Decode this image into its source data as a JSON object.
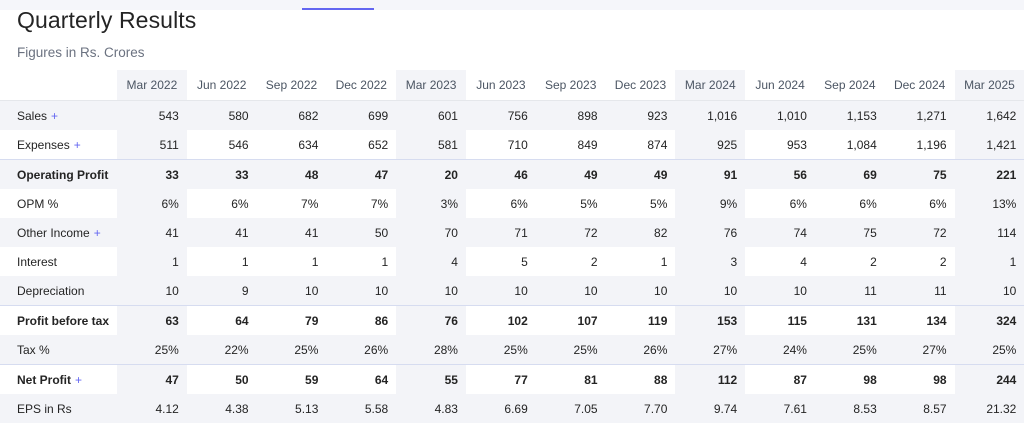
{
  "header": {
    "title": "Quarterly Results",
    "subtitle": "Figures in Rs. Crores"
  },
  "table": {
    "columns": [
      "Mar 2022",
      "Jun 2022",
      "Sep 2022",
      "Dec 2022",
      "Mar 2023",
      "Jun 2023",
      "Sep 2023",
      "Dec 2023",
      "Mar 2024",
      "Jun 2024",
      "Sep 2024",
      "Dec 2024",
      "Mar 2025"
    ],
    "expand_symbol": "+",
    "rows": [
      {
        "label": "Sales",
        "expandable": true,
        "bold": false,
        "sep": false,
        "values": [
          "543",
          "580",
          "682",
          "699",
          "601",
          "756",
          "898",
          "923",
          "1,016",
          "1,010",
          "1,153",
          "1,271",
          "1,642"
        ]
      },
      {
        "label": "Expenses",
        "expandable": true,
        "bold": false,
        "sep": false,
        "values": [
          "511",
          "546",
          "634",
          "652",
          "581",
          "710",
          "849",
          "874",
          "925",
          "953",
          "1,084",
          "1,196",
          "1,421"
        ]
      },
      {
        "label": "Operating Profit",
        "expandable": false,
        "bold": true,
        "sep": true,
        "values": [
          "33",
          "33",
          "48",
          "47",
          "20",
          "46",
          "49",
          "49",
          "91",
          "56",
          "69",
          "75",
          "221"
        ]
      },
      {
        "label": "OPM %",
        "expandable": false,
        "bold": false,
        "sep": false,
        "values": [
          "6%",
          "6%",
          "7%",
          "7%",
          "3%",
          "6%",
          "5%",
          "5%",
          "9%",
          "6%",
          "6%",
          "6%",
          "13%"
        ]
      },
      {
        "label": "Other Income",
        "expandable": true,
        "bold": false,
        "sep": false,
        "values": [
          "41",
          "41",
          "41",
          "50",
          "70",
          "71",
          "72",
          "82",
          "76",
          "74",
          "75",
          "72",
          "114"
        ]
      },
      {
        "label": "Interest",
        "expandable": false,
        "bold": false,
        "sep": false,
        "values": [
          "1",
          "1",
          "1",
          "1",
          "4",
          "5",
          "2",
          "1",
          "3",
          "4",
          "2",
          "2",
          "1"
        ]
      },
      {
        "label": "Depreciation",
        "expandable": false,
        "bold": false,
        "sep": false,
        "values": [
          "10",
          "9",
          "10",
          "10",
          "10",
          "10",
          "10",
          "10",
          "10",
          "10",
          "11",
          "11",
          "10"
        ]
      },
      {
        "label": "Profit before tax",
        "expandable": false,
        "bold": true,
        "sep": true,
        "values": [
          "63",
          "64",
          "79",
          "86",
          "76",
          "102",
          "107",
          "119",
          "153",
          "115",
          "131",
          "134",
          "324"
        ]
      },
      {
        "label": "Tax %",
        "expandable": false,
        "bold": false,
        "sep": false,
        "values": [
          "25%",
          "22%",
          "25%",
          "26%",
          "28%",
          "25%",
          "25%",
          "26%",
          "27%",
          "24%",
          "25%",
          "27%",
          "25%"
        ]
      },
      {
        "label": "Net Profit",
        "expandable": true,
        "bold": true,
        "sep": true,
        "values": [
          "47",
          "50",
          "59",
          "64",
          "55",
          "77",
          "81",
          "88",
          "112",
          "87",
          "98",
          "98",
          "244"
        ]
      },
      {
        "label": "EPS in Rs",
        "expandable": false,
        "bold": false,
        "sep": false,
        "values": [
          "4.12",
          "4.38",
          "5.13",
          "5.58",
          "4.83",
          "6.69",
          "7.05",
          "7.70",
          "9.74",
          "7.61",
          "8.53",
          "8.57",
          "21.32"
        ]
      }
    ]
  },
  "colors": {
    "accent": "#6366f1",
    "shade": "#f3f4f8",
    "text": "#242424",
    "muted": "#6b7280"
  }
}
